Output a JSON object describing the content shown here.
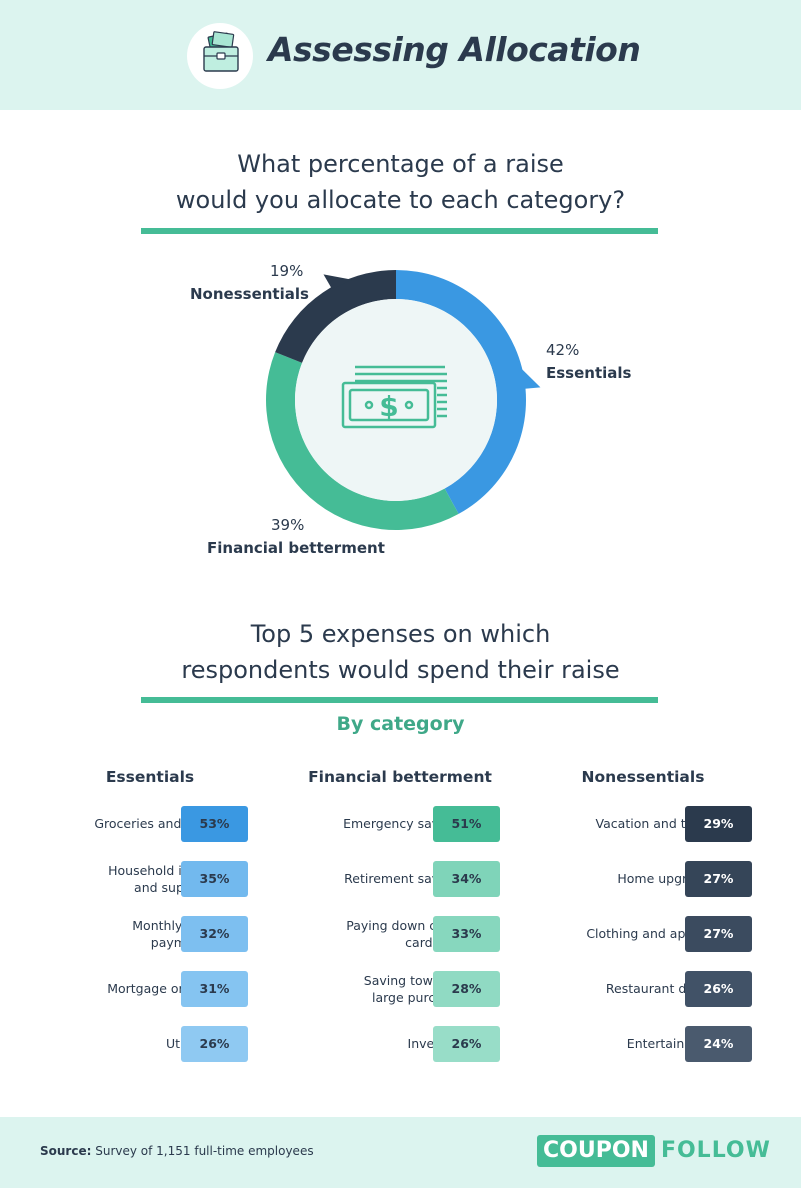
{
  "header": {
    "title": "Assessing Allocation",
    "icon": "briefcase-money-icon"
  },
  "donut_section": {
    "title_line1": "What percentage of a raise",
    "title_line2": "would you allocate to each category?"
  },
  "expenses_section": {
    "title_line1": "Top 5 expenses on which",
    "title_line2": "respondents would spend their raise",
    "subtitle": "By category"
  },
  "colors": {
    "essentials": "#3a98e2",
    "financial": "#45bc96",
    "nonessentials": "#2b3a4d",
    "rule": "#45bc96",
    "header_bg": "#dcf4ef"
  },
  "chart_data": [
    {
      "type": "pie",
      "title": "What percentage of a raise would you allocate to each category?",
      "categories": [
        "Essentials",
        "Financial betterment",
        "Nonessentials"
      ],
      "values": [
        42,
        39,
        19
      ],
      "labels": [
        "42%",
        "39%",
        "19%"
      ],
      "unit": "%",
      "center_icon": "money-bill-icon"
    },
    {
      "type": "table",
      "title": "Top 5 expenses on which respondents would spend their raise",
      "subtitle": "By category",
      "series": [
        {
          "name": "Essentials",
          "items": [
            {
              "label": "Groceries and food",
              "value": 53,
              "display": "53%"
            },
            {
              "label": "Household items and supplies",
              "value": 35,
              "display": "35%"
            },
            {
              "label": "Monthly loan payments",
              "value": 32,
              "display": "32%"
            },
            {
              "label": "Mortgage or rent",
              "value": 31,
              "display": "31%"
            },
            {
              "label": "Utilities",
              "value": 26,
              "display": "26%"
            }
          ]
        },
        {
          "name": "Financial betterment",
          "items": [
            {
              "label": "Emergency savings",
              "value": 51,
              "display": "51%"
            },
            {
              "label": "Retirement savings",
              "value": 34,
              "display": "34%"
            },
            {
              "label": "Paying down credit card debt",
              "value": 33,
              "display": "33%"
            },
            {
              "label": "Saving toward a large purchase",
              "value": 28,
              "display": "28%"
            },
            {
              "label": "Investing",
              "value": 26,
              "display": "26%"
            }
          ]
        },
        {
          "name": "Nonessentials",
          "items": [
            {
              "label": "Vacation and travel",
              "value": 29,
              "display": "29%"
            },
            {
              "label": "Home upgrades",
              "value": 27,
              "display": "27%"
            },
            {
              "label": "Clothing and apparel",
              "value": 27,
              "display": "27%"
            },
            {
              "label": "Restaurant dining",
              "value": 26,
              "display": "26%"
            },
            {
              "label": "Entertainment",
              "value": 24,
              "display": "24%"
            }
          ]
        }
      ]
    }
  ],
  "footer": {
    "source_label": "Source:",
    "source_text": "Survey of 1,151 full-time employees",
    "logo_part1": "COUPON",
    "logo_part2": "FOLLOW"
  }
}
